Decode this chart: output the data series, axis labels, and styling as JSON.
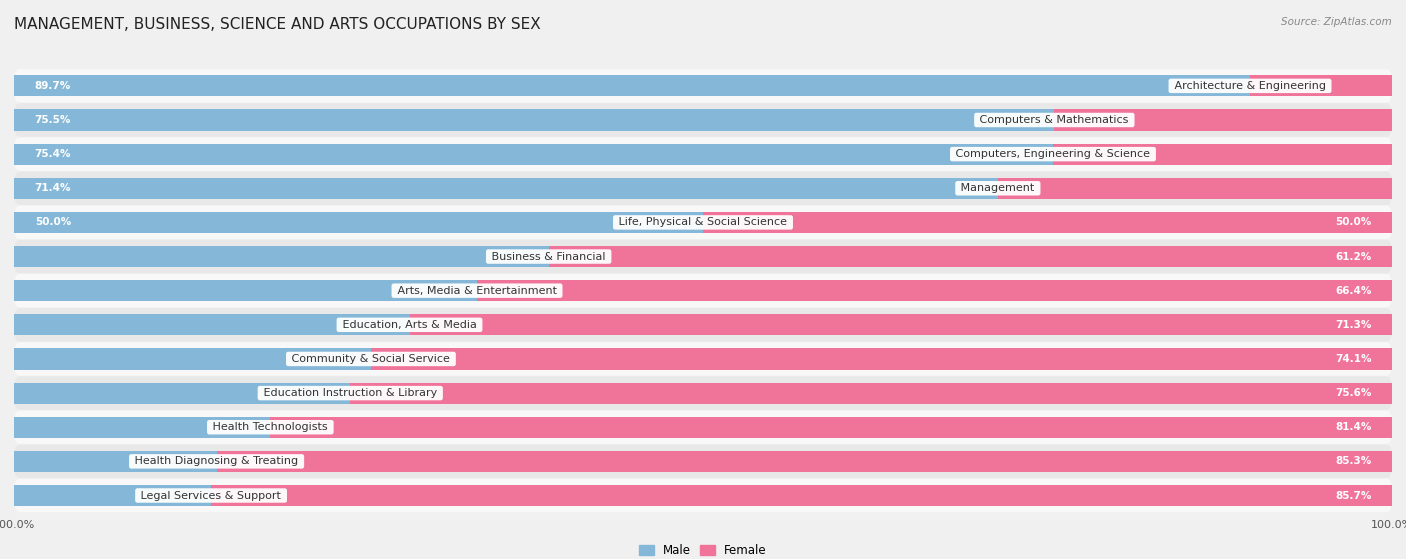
{
  "title": "MANAGEMENT, BUSINESS, SCIENCE AND ARTS OCCUPATIONS BY SEX",
  "source": "Source: ZipAtlas.com",
  "categories": [
    "Architecture & Engineering",
    "Computers & Mathematics",
    "Computers, Engineering & Science",
    "Management",
    "Life, Physical & Social Science",
    "Business & Financial",
    "Arts, Media & Entertainment",
    "Education, Arts & Media",
    "Community & Social Service",
    "Education Instruction & Library",
    "Health Technologists",
    "Health Diagnosing & Treating",
    "Legal Services & Support"
  ],
  "male_pct": [
    89.7,
    75.5,
    75.4,
    71.4,
    50.0,
    38.8,
    33.6,
    28.7,
    25.9,
    24.4,
    18.6,
    14.7,
    14.3
  ],
  "female_pct": [
    10.3,
    24.5,
    24.6,
    28.6,
    50.0,
    61.2,
    66.4,
    71.3,
    74.1,
    75.6,
    81.4,
    85.3,
    85.7
  ],
  "male_color": "#85b8d8",
  "female_color": "#f0739a",
  "bg_color": "#f0f0f0",
  "row_bg_light": "#f8f8f8",
  "row_bg_dark": "#e8e8e8",
  "title_fontsize": 11,
  "label_fontsize": 8,
  "pct_fontsize": 7.5,
  "tick_fontsize": 8
}
